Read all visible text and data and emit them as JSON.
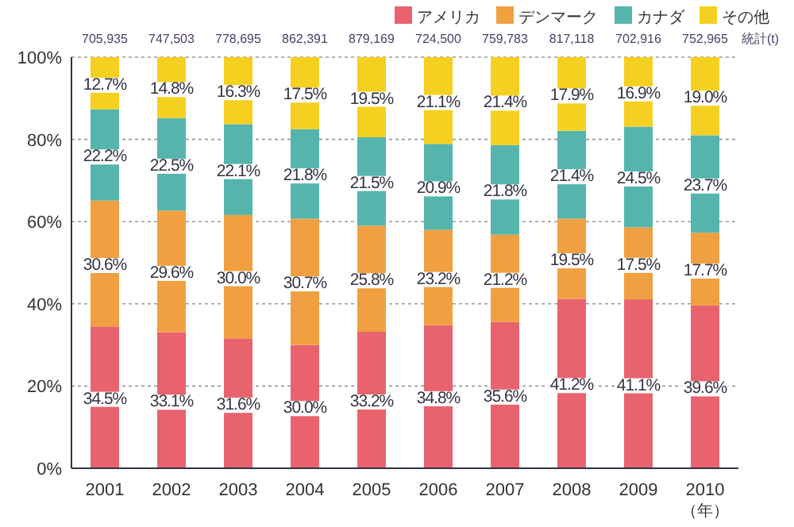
{
  "chart_data": {
    "type": "bar",
    "stacked": true,
    "categories": [
      "2001",
      "2002",
      "2003",
      "2004",
      "2005",
      "2006",
      "2007",
      "2008",
      "2009",
      "2010"
    ],
    "xlabel": "（年）",
    "ylim": [
      0,
      100
    ],
    "yticks": [
      {
        "value": 0,
        "label": "0%"
      },
      {
        "value": 20,
        "label": "20%"
      },
      {
        "value": 40,
        "label": "40%"
      },
      {
        "value": 60,
        "label": "60%"
      },
      {
        "value": 80,
        "label": "80%"
      },
      {
        "value": 100,
        "label": "100%"
      }
    ],
    "grid": "y",
    "legend": "top right",
    "series": [
      {
        "name": "アメリカ",
        "color": "#e8636e",
        "values": [
          34.5,
          33.1,
          31.6,
          30.0,
          33.2,
          34.8,
          35.6,
          41.2,
          41.1,
          39.6
        ],
        "value_labels": [
          "34.5%",
          "33.1%",
          "31.6%",
          "30.0%",
          "33.2%",
          "34.8%",
          "35.6%",
          "41.2%",
          "41.1%",
          "39.6%"
        ]
      },
      {
        "name": "デンマーク",
        "color": "#f0a040",
        "values": [
          30.6,
          29.6,
          30.0,
          30.7,
          25.8,
          23.2,
          21.2,
          19.5,
          17.5,
          17.7
        ],
        "value_labels": [
          "30.6%",
          "29.6%",
          "30.0%",
          "30.7%",
          "25.8%",
          "23.2%",
          "21.2%",
          "19.5%",
          "17.5%",
          "17.7%"
        ]
      },
      {
        "name": "カナダ",
        "color": "#55b5ad",
        "values": [
          22.2,
          22.5,
          22.1,
          21.8,
          21.5,
          20.9,
          21.8,
          21.4,
          24.5,
          23.7
        ],
        "value_labels": [
          "22.2%",
          "22.5%",
          "22.1%",
          "21.8%",
          "21.5%",
          "20.9%",
          "21.8%",
          "21.4%",
          "24.5%",
          "23.7%"
        ]
      },
      {
        "name": "その他",
        "color": "#f5d020",
        "values": [
          12.7,
          14.8,
          16.3,
          17.5,
          19.5,
          21.1,
          21.4,
          17.9,
          16.9,
          19.0
        ],
        "value_labels": [
          "12.7%",
          "14.8%",
          "16.3%",
          "17.5%",
          "19.5%",
          "21.1%",
          "21.4%",
          "17.9%",
          "16.9%",
          "19.0%"
        ]
      }
    ],
    "annotations": [
      "705,935",
      "747,503",
      "778,695",
      "862,391",
      "879,169",
      "724,500",
      "759,783",
      "817,118",
      "702,916",
      "752,965",
      "統計(t)"
    ]
  }
}
